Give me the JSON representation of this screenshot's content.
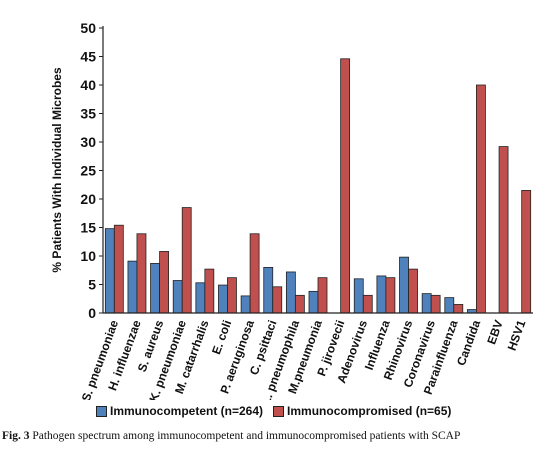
{
  "chart_data": {
    "type": "bar",
    "ylabel": "% Patients With Individual Microbes",
    "ylim": [
      0,
      50
    ],
    "yticks": [
      0,
      5,
      10,
      15,
      20,
      25,
      30,
      35,
      40,
      45,
      50
    ],
    "grid": false,
    "legend_position": "bottom",
    "categories": [
      "S. pneumoniae",
      "H. influenzae",
      "S. aureus",
      "K. pneumoniae",
      "M. catarrhalis",
      "E. coli",
      "P. aeruginosa",
      "C. psittaci",
      "L. pneumophila",
      "M.pneumonia",
      "P. jirovecii",
      "Adenovirus",
      "Influenza",
      "Rhinovirus",
      "Coronavirus",
      "Parainfluenza",
      "Candida",
      "EBV",
      "HSV1"
    ],
    "series": [
      {
        "name": "Immunocompetent (n=264)",
        "color": "#4f81bd",
        "values": [
          14.8,
          9.1,
          8.7,
          5.7,
          5.3,
          4.9,
          3.0,
          8.0,
          7.2,
          3.8,
          0,
          6.0,
          6.5,
          9.8,
          3.4,
          2.7,
          0.6,
          0,
          0
        ]
      },
      {
        "name": "Immunocompromised (n=65)",
        "color": "#c0504d",
        "values": [
          15.4,
          13.9,
          10.8,
          18.5,
          7.7,
          6.2,
          13.9,
          4.6,
          3.1,
          6.2,
          44.6,
          3.1,
          6.2,
          7.7,
          3.1,
          1.5,
          40.0,
          29.2,
          21.5
        ]
      }
    ]
  },
  "caption": {
    "label": "Fig. 3",
    "text": "Pathogen spectrum among immunocompetent and immunocompromised patients with SCAP"
  }
}
